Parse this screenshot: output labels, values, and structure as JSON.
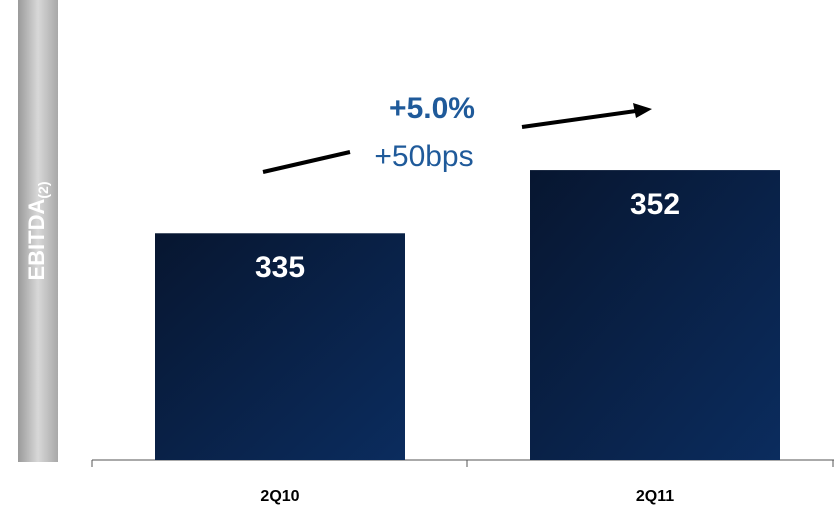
{
  "chart_data": {
    "type": "bar",
    "ylabel": "EBITDA",
    "ylabel_note": "(2)",
    "categories": [
      "2Q10",
      "2Q11"
    ],
    "values": [
      335,
      352
    ],
    "color": "#0b2c5e",
    "ylim": [
      274,
      387
    ],
    "annotations": [
      "+5.0%",
      "+50bps"
    ]
  }
}
